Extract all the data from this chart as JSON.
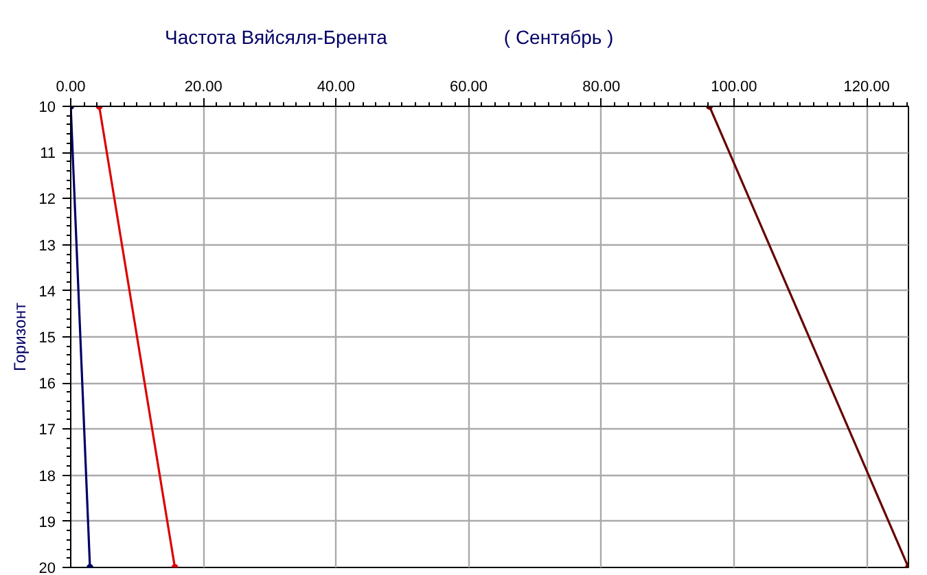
{
  "chart_data": {
    "type": "line",
    "title": "Частота Вяйсяля-Брента",
    "subtitle": "( Сентябрь )",
    "ylabel": "Горизонт",
    "series": [
      {
        "color": "#000066",
        "x": [
          0.0,
          2.9
        ],
        "values": [
          10,
          20
        ]
      },
      {
        "color": "#dd0000",
        "x": [
          4.3,
          15.7
        ],
        "values": [
          10,
          20
        ]
      },
      {
        "color": "#660000",
        "x": [
          96.3,
          126.3
        ],
        "values": [
          10,
          20
        ]
      }
    ],
    "xlim": [
      0,
      126.3
    ],
    "ylim": [
      20,
      10
    ],
    "xticks": [
      {
        "value": 0,
        "label": "0.00"
      },
      {
        "value": 20,
        "label": "20.00"
      },
      {
        "value": 40,
        "label": "40.00"
      },
      {
        "value": 60,
        "label": "60.00"
      },
      {
        "value": 80,
        "label": "80.00"
      },
      {
        "value": 100,
        "label": "100.00"
      },
      {
        "value": 120,
        "label": "120.00"
      }
    ],
    "yticks": [
      10,
      11,
      12,
      13,
      14,
      15,
      16,
      17,
      18,
      19,
      20
    ],
    "grid": true,
    "marker": "circle",
    "line_style": "solid"
  }
}
